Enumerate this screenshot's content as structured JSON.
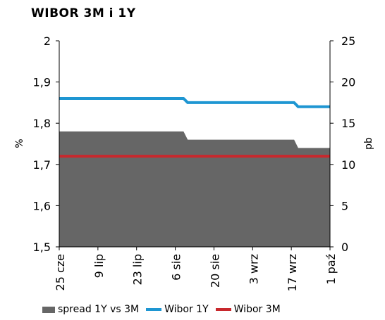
{
  "chart_data": {
    "type": "line",
    "title": "WIBOR 3M i 1Y",
    "ylabel_left": "%",
    "ylabel_right": "pb",
    "ylim_left": [
      1.5,
      2
    ],
    "ylim_right": [
      0,
      25
    ],
    "yticks_left": [
      "1,5",
      "1,6",
      "1,7",
      "1,8",
      "1,9",
      "2"
    ],
    "yticks_right": [
      "0",
      "5",
      "10",
      "15",
      "20",
      "25"
    ],
    "x_ticks": [
      "25 cze",
      "9 lip",
      "23 lip",
      "6 sie",
      "20 sie",
      "3 wrz",
      "17 wrz",
      "1 paź"
    ],
    "x_range_days": [
      0,
      98
    ],
    "grid": false,
    "legend_position": "bottom",
    "series": [
      {
        "name": "spread 1Y vs 3M",
        "type": "area",
        "axis": "right",
        "color": "#666666",
        "points": [
          [
            0,
            14
          ],
          [
            45,
            14
          ],
          [
            46.5,
            13
          ],
          [
            85,
            13
          ],
          [
            86.5,
            12
          ],
          [
            98,
            12
          ]
        ]
      },
      {
        "name": "Wibor 1Y",
        "type": "line",
        "axis": "left",
        "color": "#1e96d2",
        "points": [
          [
            0,
            1.86
          ],
          [
            45,
            1.86
          ],
          [
            46.5,
            1.85
          ],
          [
            85,
            1.85
          ],
          [
            86.5,
            1.84
          ],
          [
            98,
            1.84
          ]
        ]
      },
      {
        "name": "Wibor 3M",
        "type": "line",
        "axis": "left",
        "color": "#c8282d",
        "points": [
          [
            0,
            1.72
          ],
          [
            98,
            1.72
          ]
        ]
      }
    ]
  }
}
